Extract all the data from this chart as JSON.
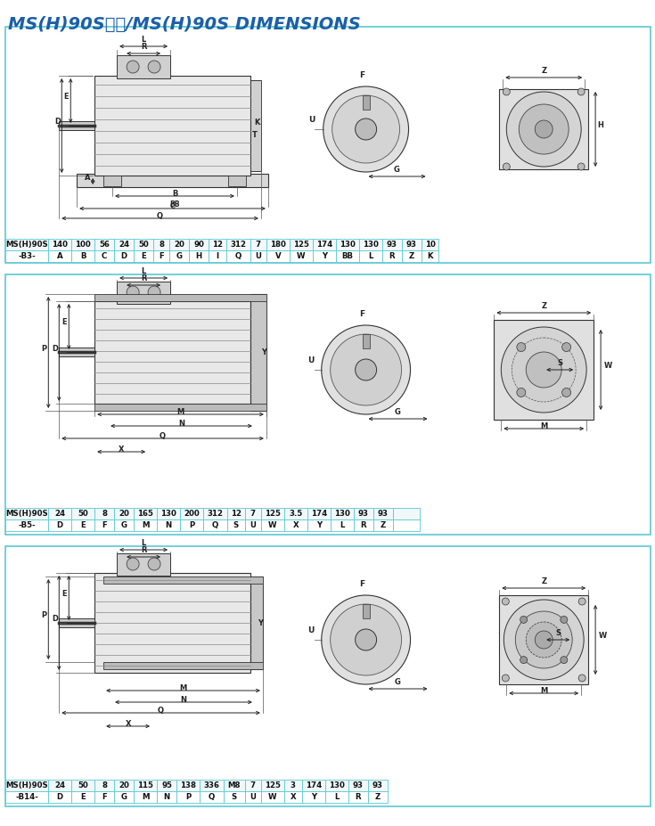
{
  "title": "MS(H)90S尺寸/MS(H)90S DIMENSIONS",
  "title_color_chinese": "#1a5fa8",
  "title_color_english": "#1a5fa8",
  "background_color": "#ffffff",
  "border_color": "#5bc8d2",
  "table_b3": {
    "label": "MS(H)90S",
    "sub_label": "-B3-",
    "values": [
      "140",
      "100",
      "56",
      "24",
      "50",
      "8",
      "20",
      "90",
      "12",
      "312",
      "7",
      "180",
      "125",
      "174",
      "130",
      "130",
      "93",
      "93",
      "10"
    ],
    "params": [
      "A",
      "B",
      "C",
      "D",
      "E",
      "F",
      "G",
      "H",
      "I",
      "Q",
      "U",
      "V",
      "W",
      "Y",
      "BB",
      "L",
      "R",
      "Z",
      "K"
    ]
  },
  "table_b5": {
    "label": "MS(H)90S",
    "sub_label": "-B5-",
    "values": [
      "24",
      "50",
      "8",
      "20",
      "165",
      "130",
      "200",
      "312",
      "12",
      "7",
      "125",
      "3.5",
      "174",
      "130",
      "93",
      "93",
      "",
      "",
      ""
    ],
    "params": [
      "D",
      "E",
      "F",
      "G",
      "M",
      "N",
      "P",
      "Q",
      "S",
      "U",
      "W",
      "X",
      "Y",
      "L",
      "R",
      "Z",
      "",
      "",
      ""
    ]
  },
  "table_b14": {
    "label": "MS(H)90S",
    "sub_label": "-B14-",
    "values": [
      "24",
      "50",
      "8",
      "20",
      "115",
      "95",
      "138",
      "336",
      "M8",
      "7",
      "125",
      "3",
      "174",
      "130",
      "93",
      "93",
      "",
      "",
      ""
    ],
    "params": [
      "D",
      "E",
      "F",
      "G",
      "M",
      "N",
      "P",
      "Q",
      "S",
      "U",
      "W",
      "X",
      "Y",
      "L",
      "R",
      "Z",
      "",
      "",
      ""
    ]
  },
  "section_box_color": "#5bc8d2",
  "dim_line_color": "#000000",
  "drawing_line_color": "#2d2d2d",
  "table_header_bg": "#e8f4f8",
  "row1_bg": "#f5f5f5",
  "row2_bg": "#ffffff"
}
